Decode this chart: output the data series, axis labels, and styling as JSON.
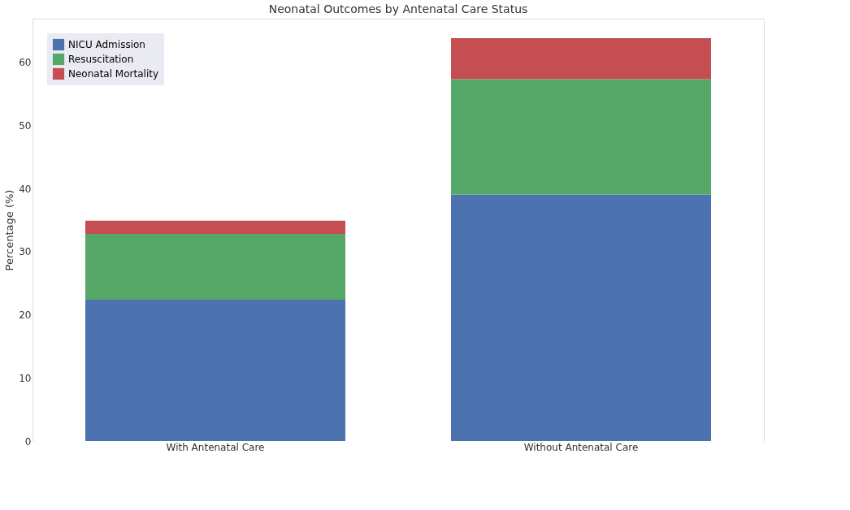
{
  "chart_data": {
    "type": "bar",
    "title": "Neonatal Outcomes by Antenatal Care Status",
    "ylabel": "Percentage (%)",
    "categories": [
      "With Antenatal Care",
      "Without Antenatal Care"
    ],
    "series": [
      {
        "name": "NICU Admission",
        "color": "#4c72b0",
        "values": [
          22.4,
          39.0
        ]
      },
      {
        "name": "Resuscitation",
        "color": "#55a868",
        "values": [
          10.4,
          18.3
        ]
      },
      {
        "name": "Neonatal Mortality",
        "color": "#c44e52",
        "values": [
          2.1,
          6.5
        ]
      }
    ],
    "stacked": true,
    "ylim": [
      0,
      66.9
    ],
    "yticks": [
      0,
      10,
      20,
      30,
      40,
      50,
      60
    ],
    "grid": true,
    "legend": "top left"
  }
}
